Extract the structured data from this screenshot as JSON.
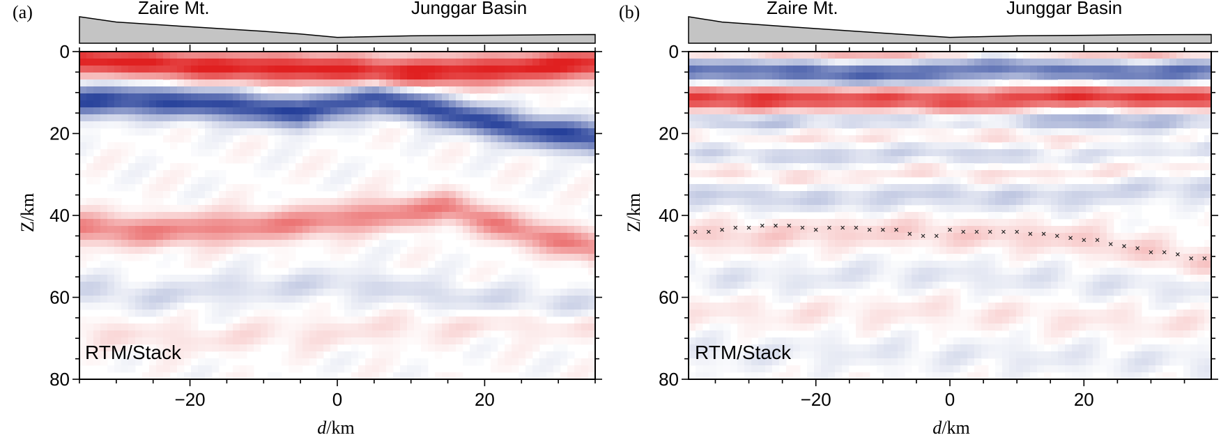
{
  "figure": {
    "colors": {
      "positive": "#e02020",
      "negative": "#26409a",
      "topo_fill": "#c4c4c4",
      "topo_stroke": "#000000",
      "crosses": "#222222"
    }
  },
  "chart_data": [
    {
      "type": "heatmap",
      "panel_label": "(a)",
      "annotation": "RTM/Stack",
      "region_labels": [
        "Zaire Mt.",
        "Junggar Basin"
      ],
      "xlabel_italic": "d",
      "xlabel_unit": "/km",
      "ylabel": "Z/km",
      "xlim": [
        -35,
        35
      ],
      "ylim": [
        80,
        0
      ],
      "x_ticks": [
        -20,
        0,
        20
      ],
      "y_ticks": [
        0,
        20,
        40,
        60,
        80
      ],
      "x_tick_labels": [
        "−20",
        "0",
        "20"
      ],
      "y_tick_labels": [
        "0",
        "20",
        "40",
        "60",
        "80"
      ],
      "colormap": "red-white-blue",
      "topography": {
        "x": [
          -35,
          -30,
          -20,
          -10,
          -5,
          0,
          10,
          20,
          30,
          35
        ],
        "elevation_relative": [
          1.0,
          0.8,
          0.62,
          0.45,
          0.35,
          0.22,
          0.28,
          0.3,
          0.32,
          0.33
        ]
      },
      "reflectors": [
        {
          "name": "shallow-positive",
          "polarity": 1,
          "strength": 1.0,
          "depth": [
            2,
            3,
            4,
            4,
            5,
            5,
            4,
            3
          ],
          "x": [
            -35,
            -25,
            -15,
            -5,
            5,
            15,
            25,
            35
          ]
        },
        {
          "name": "upper-crust-negative",
          "polarity": -1,
          "strength": 0.95,
          "depth": [
            12,
            12,
            13,
            15,
            11,
            15,
            19,
            21
          ],
          "x": [
            -35,
            -25,
            -15,
            -5,
            5,
            15,
            25,
            35
          ]
        },
        {
          "name": "moho-positive",
          "polarity": 1,
          "strength": 0.55,
          "depth": [
            43,
            44,
            43,
            42,
            40,
            38,
            44,
            48
          ],
          "x": [
            -35,
            -25,
            -15,
            -5,
            5,
            15,
            25,
            35
          ]
        },
        {
          "name": "lower-negative",
          "polarity": -1,
          "strength": 0.18,
          "depth": [
            58,
            60,
            58,
            57,
            57,
            60,
            61,
            62
          ],
          "x": [
            -35,
            -25,
            -15,
            -5,
            5,
            15,
            25,
            35
          ]
        },
        {
          "name": "deep-positive",
          "polarity": 1,
          "strength": 0.12,
          "depth": [
            68,
            70,
            70,
            69,
            68,
            67,
            66,
            67
          ],
          "x": [
            -35,
            -25,
            -15,
            -5,
            5,
            15,
            25,
            35
          ]
        }
      ],
      "moho_crosses": null
    },
    {
      "type": "heatmap",
      "panel_label": "(b)",
      "annotation": "RTM/Stack",
      "region_labels": [
        "Zaire Mt.",
        "Junggar Basin"
      ],
      "xlabel_italic": "d",
      "xlabel_unit": "/km",
      "ylabel": "Z/km",
      "xlim": [
        -39,
        39
      ],
      "ylim": [
        80,
        0
      ],
      "x_ticks": [
        -20,
        0,
        20
      ],
      "y_ticks": [
        0,
        20,
        40,
        60,
        80
      ],
      "x_tick_labels": [
        "−20",
        "0",
        "20"
      ],
      "y_tick_labels": [
        "0",
        "20",
        "40",
        "60",
        "80"
      ],
      "colormap": "red-white-blue",
      "topography": {
        "x": [
          -39,
          -34,
          -24,
          -14,
          -8,
          0,
          10,
          20,
          30,
          39
        ],
        "elevation_relative": [
          1.0,
          0.8,
          0.62,
          0.45,
          0.35,
          0.22,
          0.28,
          0.3,
          0.32,
          0.33
        ]
      },
      "reflectors": [
        {
          "name": "surface-positive",
          "polarity": 1,
          "strength": 0.6,
          "depth": [
            1,
            1,
            1,
            1,
            1,
            1,
            1,
            1
          ],
          "x": [
            -39,
            -28,
            -17,
            -6,
            5,
            16,
            27,
            39
          ]
        },
        {
          "name": "shallow-negative",
          "polarity": -1,
          "strength": 1.0,
          "depth": [
            4,
            4,
            5,
            5,
            3,
            4,
            5,
            4
          ],
          "x": [
            -39,
            -28,
            -17,
            -6,
            5,
            16,
            27,
            39
          ]
        },
        {
          "name": "positive-13",
          "polarity": 1,
          "strength": 1.0,
          "depth": [
            12,
            12,
            12,
            12,
            13,
            11,
            11,
            12
          ],
          "x": [
            -39,
            -28,
            -17,
            -6,
            5,
            16,
            27,
            39
          ]
        },
        {
          "name": "negative-17",
          "polarity": -1,
          "strength": 0.55,
          "depth": [
            16,
            17,
            16,
            16,
            16,
            16,
            17,
            16
          ],
          "x": [
            -39,
            -28,
            -17,
            -6,
            5,
            16,
            27,
            39
          ]
        },
        {
          "name": "positive-21",
          "polarity": 1,
          "strength": 0.3,
          "depth": [
            20,
            21,
            20,
            20,
            20,
            22,
            21,
            20
          ],
          "x": [
            -39,
            -28,
            -17,
            -6,
            5,
            16,
            27,
            39
          ]
        },
        {
          "name": "negative-25",
          "polarity": -1,
          "strength": 0.3,
          "depth": [
            24,
            25,
            26,
            24,
            25,
            25,
            24,
            23
          ],
          "x": [
            -39,
            -28,
            -17,
            -6,
            5,
            16,
            27,
            39
          ]
        },
        {
          "name": "positive-30",
          "polarity": 1,
          "strength": 0.2,
          "depth": [
            29,
            30,
            31,
            29,
            30,
            30,
            29,
            28
          ],
          "x": [
            -39,
            -28,
            -17,
            -6,
            5,
            16,
            27,
            39
          ]
        },
        {
          "name": "negative-34",
          "polarity": -1,
          "strength": 0.25,
          "depth": [
            34,
            35,
            36,
            34,
            35,
            35,
            33,
            32
          ],
          "x": [
            -39,
            -28,
            -17,
            -6,
            5,
            16,
            27,
            39
          ]
        },
        {
          "name": "positive-moho",
          "polarity": 1,
          "strength": 0.2,
          "depth": [
            45,
            45,
            44,
            44,
            45,
            45,
            48,
            52
          ],
          "x": [
            -39,
            -28,
            -17,
            -6,
            5,
            16,
            27,
            39
          ]
        },
        {
          "name": "negative-55",
          "polarity": -1,
          "strength": 0.12,
          "depth": [
            54,
            56,
            55,
            54,
            55,
            56,
            57,
            58
          ],
          "x": [
            -39,
            -28,
            -17,
            -6,
            5,
            16,
            27,
            39
          ]
        },
        {
          "name": "positive-64",
          "polarity": 1,
          "strength": 0.1,
          "depth": [
            63,
            64,
            64,
            63,
            64,
            65,
            66,
            67
          ],
          "x": [
            -39,
            -28,
            -17,
            -6,
            5,
            16,
            27,
            39
          ]
        },
        {
          "name": "negative-74",
          "polarity": -1,
          "strength": 0.1,
          "depth": [
            73,
            74,
            73,
            74,
            74,
            75,
            75,
            76
          ],
          "x": [
            -39,
            -28,
            -17,
            -6,
            5,
            16,
            27,
            39
          ]
        }
      ],
      "moho_crosses": {
        "x": [
          -38,
          -36,
          -34,
          -32,
          -30,
          -28,
          -26,
          -24,
          -22,
          -20,
          -18,
          -16,
          -14,
          -12,
          -10,
          -8,
          -6,
          -4,
          -2,
          0,
          2,
          4,
          6,
          8,
          10,
          12,
          14,
          16,
          18,
          20,
          22,
          24,
          26,
          28,
          30,
          32,
          34,
          36,
          38
        ],
        "depth": [
          44,
          44,
          43.5,
          43,
          43,
          42.5,
          42.5,
          42.5,
          43,
          43.5,
          43,
          43,
          43,
          43.5,
          43.5,
          43.5,
          44.5,
          45,
          45,
          43.5,
          44,
          44,
          44,
          44,
          44,
          44.5,
          44.5,
          45,
          45.5,
          46,
          46,
          47,
          47.5,
          48,
          49,
          49,
          49.5,
          50.5,
          50.5
        ]
      }
    }
  ]
}
